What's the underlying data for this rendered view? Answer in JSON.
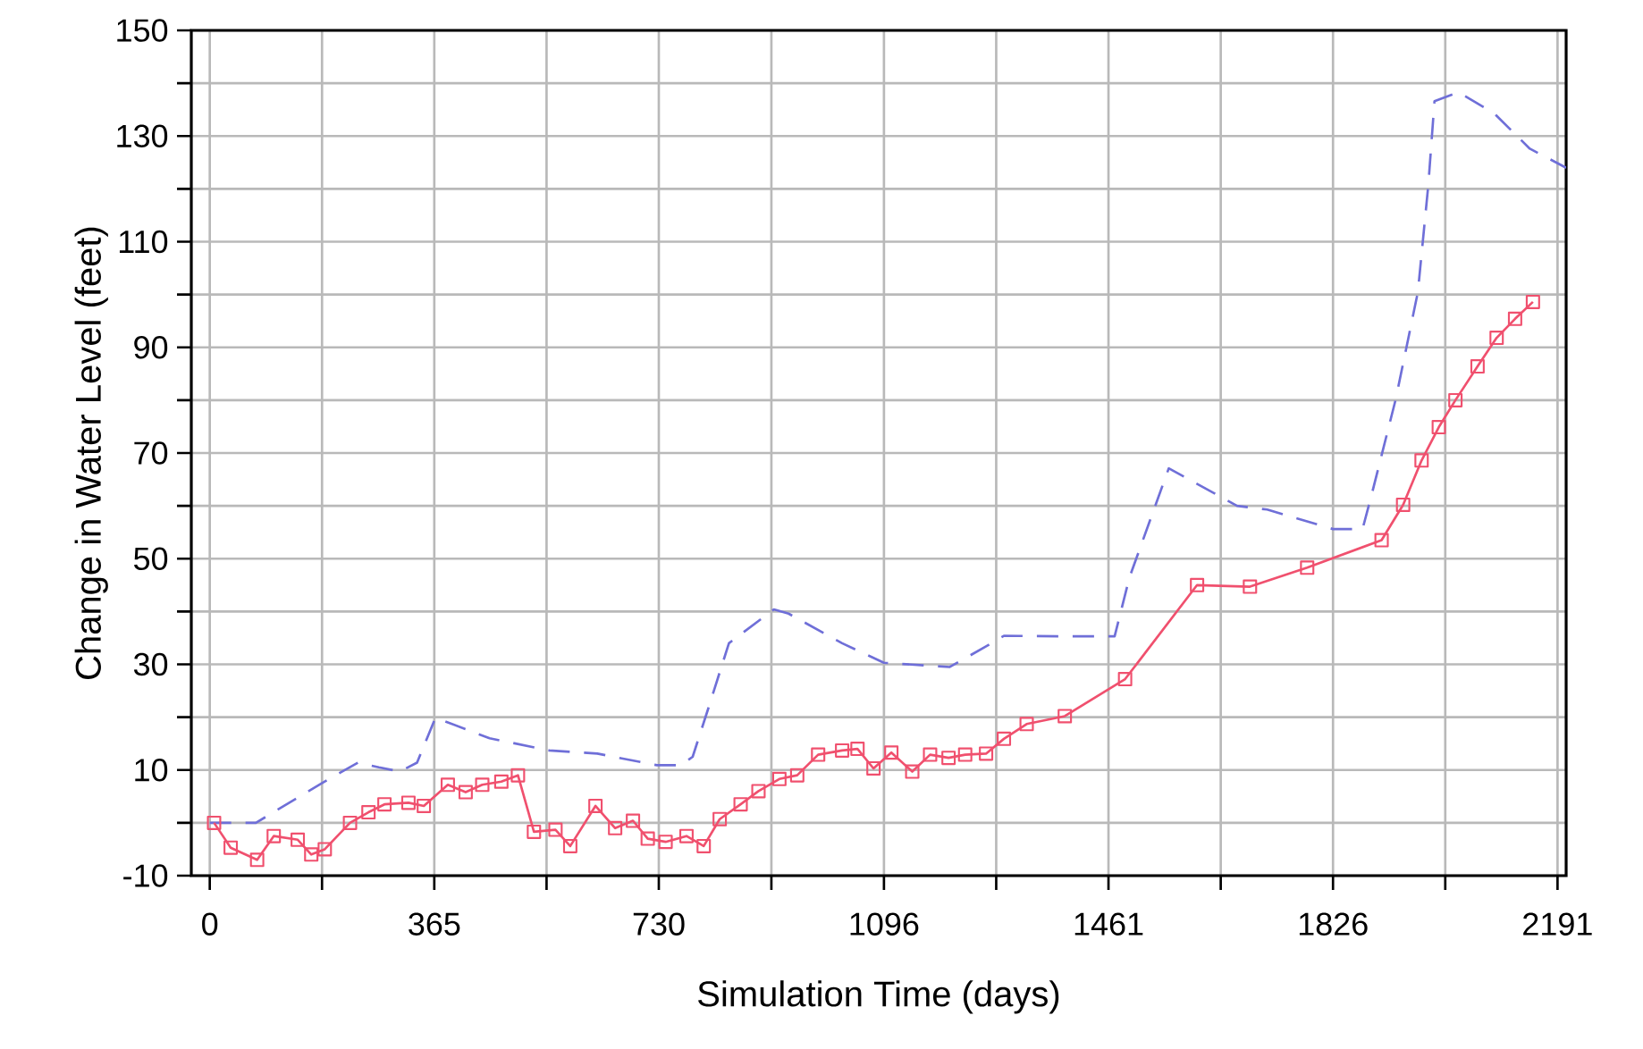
{
  "chart_data": {
    "type": "line",
    "xlabel": "Simulation Time (days)",
    "ylabel": "Change in Water Level (feet)",
    "xlim": [
      -30,
      2205
    ],
    "ylim": [
      -10,
      150
    ],
    "xticks": [
      0,
      {
        "value": 182.5,
        "label": null
      },
      365,
      {
        "value": 547.5,
        "label": null
      },
      730,
      {
        "value": 913,
        "label": null
      },
      1096,
      {
        "value": 1278.5,
        "label": null
      },
      1461,
      {
        "value": 1643.5,
        "label": null
      },
      1826,
      {
        "value": 2008.5,
        "label": null
      },
      2191
    ],
    "yticks": [
      -10,
      {
        "value": 0,
        "label": null
      },
      10,
      {
        "value": 20,
        "label": null
      },
      30,
      {
        "value": 40,
        "label": null
      },
      50,
      {
        "value": 60,
        "label": null
      },
      70,
      {
        "value": 80,
        "label": null
      },
      90,
      {
        "value": 100,
        "label": null
      },
      110,
      {
        "value": 120,
        "label": null
      },
      130,
      {
        "value": 140,
        "label": null
      },
      150
    ],
    "grid": true,
    "series": [
      {
        "color": "#6f6fd8",
        "line_style": "dashed",
        "marker": "none",
        "x": [
          0,
          75,
          182,
          241,
          275,
          309,
          337,
          367,
          455,
          552,
          630,
          727,
          766,
          785,
          810,
          844,
          917,
          941,
          1028,
          1096,
          1203,
          1262,
          1291,
          1378,
          1471,
          1495,
          1559,
          1670,
          1719,
          1826,
          1874,
          1889,
          1928,
          1964,
          1981,
          1991,
          2030,
          2088,
          2146,
          2205
        ],
        "values": [
          0,
          0,
          7.5,
          11.4,
          10.5,
          9.7,
          11.4,
          19.9,
          16,
          13.7,
          13.1,
          10.9,
          10.9,
          12.5,
          21.5,
          34,
          40.4,
          39.6,
          34,
          30.3,
          29.5,
          33.4,
          35.4,
          35.3,
          35.3,
          46.4,
          67.1,
          60,
          59.3,
          55.6,
          55.6,
          62.2,
          80.2,
          100.5,
          120.8,
          136.6,
          138.3,
          134.3,
          127.6,
          124
        ]
      },
      {
        "color": "#f0506e",
        "line_style": "solid",
        "marker": "square",
        "x": [
          7,
          34,
          77,
          104,
          143,
          165,
          187,
          228,
          258,
          284,
          323,
          348,
          387,
          416,
          443,
          474,
          501,
          527,
          562,
          586,
          627,
          659,
          688,
          712,
          741,
          775,
          803,
          829,
          863,
          892,
          926,
          955,
          989,
          1028,
          1053,
          1079,
          1108,
          1142,
          1171,
          1201,
          1228,
          1262,
          1291,
          1328,
          1390,
          1488,
          1605,
          1691,
          1784,
          1905,
          1940,
          1970,
          1998,
          2025,
          2061,
          2092,
          2122,
          2151
        ],
        "values": [
          0,
          -4.7,
          -7,
          -2.5,
          -3.2,
          -6,
          -5,
          0,
          2,
          3.5,
          3.8,
          3.2,
          7.2,
          5.8,
          7.2,
          7.8,
          9,
          -1.7,
          -1.3,
          -4.4,
          3.2,
          -1,
          0.4,
          -3,
          -3.6,
          -2.5,
          -4.4,
          0.7,
          3.5,
          6,
          8.3,
          9,
          12.9,
          13.7,
          14,
          10.3,
          13.3,
          9.7,
          12.9,
          12.3,
          12.9,
          13.1,
          15.9,
          18.7,
          20.2,
          27.2,
          45,
          44.7,
          48.3,
          53.5,
          60.2,
          68.6,
          74.9,
          80,
          86.4,
          91.8,
          95.4,
          98.6
        ]
      }
    ]
  }
}
